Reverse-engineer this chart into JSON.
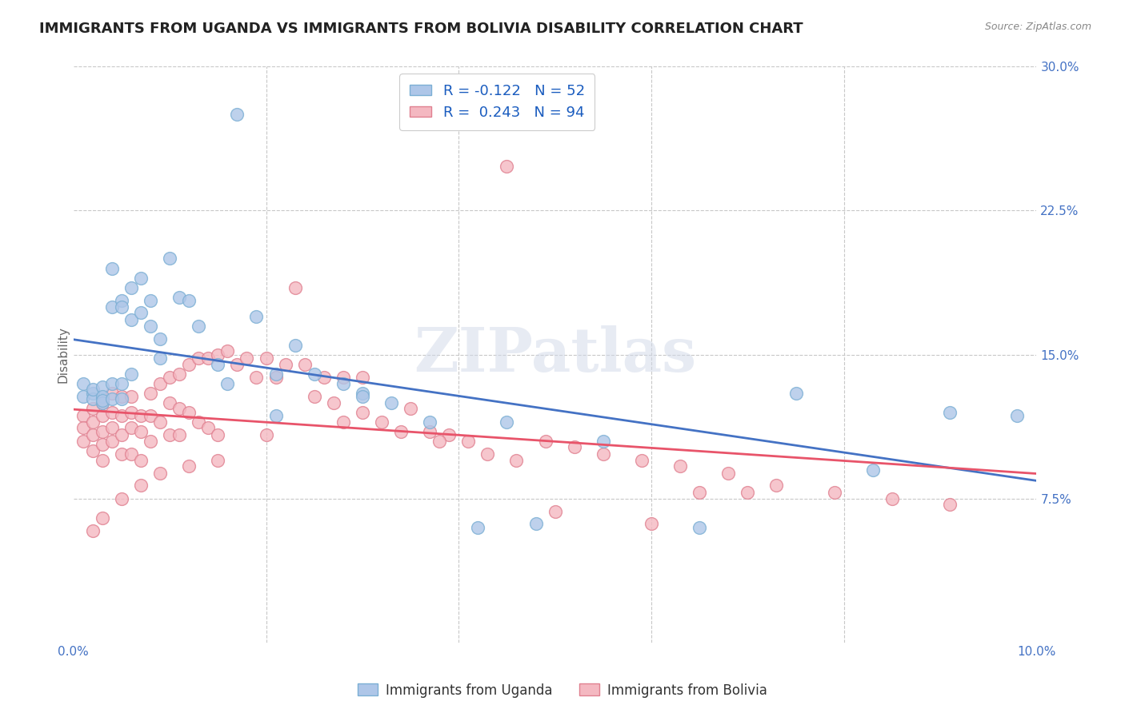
{
  "title": "IMMIGRANTS FROM UGANDA VS IMMIGRANTS FROM BOLIVIA DISABILITY CORRELATION CHART",
  "source": "Source: ZipAtlas.com",
  "ylabel": "Disability",
  "xlim": [
    0.0,
    0.1
  ],
  "ylim": [
    0.0,
    0.3
  ],
  "legend1_label": "R = -0.122   N = 52",
  "legend2_label": "R =  0.243   N = 94",
  "legend1_color": "#aec6e8",
  "legend2_color": "#f4b8c1",
  "line1_color": "#4472C4",
  "line2_color": "#E8546A",
  "scatter1_color": "#aec6e8",
  "scatter2_color": "#f4b8c1",
  "scatter1_edge": "#7bafd4",
  "scatter2_edge": "#e08090",
  "watermark": "ZIPatlas",
  "title_fontsize": 13,
  "axis_label_fontsize": 11,
  "tick_fontsize": 11,
  "tick_color": "#4472C4",
  "background_color": "#ffffff",
  "grid_color": "#c8c8c8",
  "uganda_x": [
    0.001,
    0.001,
    0.002,
    0.002,
    0.002,
    0.003,
    0.003,
    0.003,
    0.003,
    0.004,
    0.004,
    0.004,
    0.004,
    0.005,
    0.005,
    0.005,
    0.005,
    0.006,
    0.006,
    0.006,
    0.007,
    0.007,
    0.008,
    0.008,
    0.009,
    0.009,
    0.01,
    0.011,
    0.012,
    0.013,
    0.015,
    0.016,
    0.017,
    0.019,
    0.021,
    0.023,
    0.025,
    0.028,
    0.03,
    0.033,
    0.037,
    0.042,
    0.048,
    0.055,
    0.065,
    0.075,
    0.083,
    0.091,
    0.021,
    0.03,
    0.045,
    0.098
  ],
  "uganda_y": [
    0.135,
    0.128,
    0.13,
    0.127,
    0.132,
    0.133,
    0.128,
    0.125,
    0.126,
    0.195,
    0.175,
    0.135,
    0.127,
    0.178,
    0.175,
    0.135,
    0.127,
    0.185,
    0.168,
    0.14,
    0.19,
    0.172,
    0.178,
    0.165,
    0.158,
    0.148,
    0.2,
    0.18,
    0.178,
    0.165,
    0.145,
    0.135,
    0.275,
    0.17,
    0.14,
    0.155,
    0.14,
    0.135,
    0.13,
    0.125,
    0.115,
    0.06,
    0.062,
    0.105,
    0.06,
    0.13,
    0.09,
    0.12,
    0.118,
    0.128,
    0.115,
    0.118
  ],
  "bolivia_x": [
    0.001,
    0.001,
    0.001,
    0.002,
    0.002,
    0.002,
    0.002,
    0.003,
    0.003,
    0.003,
    0.003,
    0.003,
    0.004,
    0.004,
    0.004,
    0.004,
    0.005,
    0.005,
    0.005,
    0.005,
    0.006,
    0.006,
    0.006,
    0.006,
    0.007,
    0.007,
    0.007,
    0.008,
    0.008,
    0.008,
    0.009,
    0.009,
    0.01,
    0.01,
    0.01,
    0.011,
    0.011,
    0.011,
    0.012,
    0.012,
    0.013,
    0.013,
    0.014,
    0.014,
    0.015,
    0.015,
    0.016,
    0.017,
    0.018,
    0.019,
    0.02,
    0.021,
    0.022,
    0.023,
    0.024,
    0.025,
    0.026,
    0.027,
    0.028,
    0.03,
    0.032,
    0.034,
    0.035,
    0.037,
    0.039,
    0.041,
    0.043,
    0.046,
    0.049,
    0.052,
    0.055,
    0.059,
    0.063,
    0.068,
    0.073,
    0.079,
    0.085,
    0.091,
    0.05,
    0.06,
    0.038,
    0.028,
    0.02,
    0.015,
    0.012,
    0.009,
    0.007,
    0.005,
    0.003,
    0.002,
    0.065,
    0.045,
    0.03,
    0.07
  ],
  "bolivia_y": [
    0.118,
    0.112,
    0.105,
    0.122,
    0.115,
    0.108,
    0.1,
    0.125,
    0.118,
    0.11,
    0.103,
    0.095,
    0.13,
    0.12,
    0.112,
    0.105,
    0.128,
    0.118,
    0.108,
    0.098,
    0.128,
    0.12,
    0.112,
    0.098,
    0.118,
    0.11,
    0.095,
    0.13,
    0.118,
    0.105,
    0.135,
    0.115,
    0.138,
    0.125,
    0.108,
    0.14,
    0.122,
    0.108,
    0.145,
    0.12,
    0.148,
    0.115,
    0.148,
    0.112,
    0.15,
    0.108,
    0.152,
    0.145,
    0.148,
    0.138,
    0.148,
    0.138,
    0.145,
    0.185,
    0.145,
    0.128,
    0.138,
    0.125,
    0.138,
    0.12,
    0.115,
    0.11,
    0.122,
    0.11,
    0.108,
    0.105,
    0.098,
    0.095,
    0.105,
    0.102,
    0.098,
    0.095,
    0.092,
    0.088,
    0.082,
    0.078,
    0.075,
    0.072,
    0.068,
    0.062,
    0.105,
    0.115,
    0.108,
    0.095,
    0.092,
    0.088,
    0.082,
    0.075,
    0.065,
    0.058,
    0.078,
    0.248,
    0.138,
    0.078
  ]
}
